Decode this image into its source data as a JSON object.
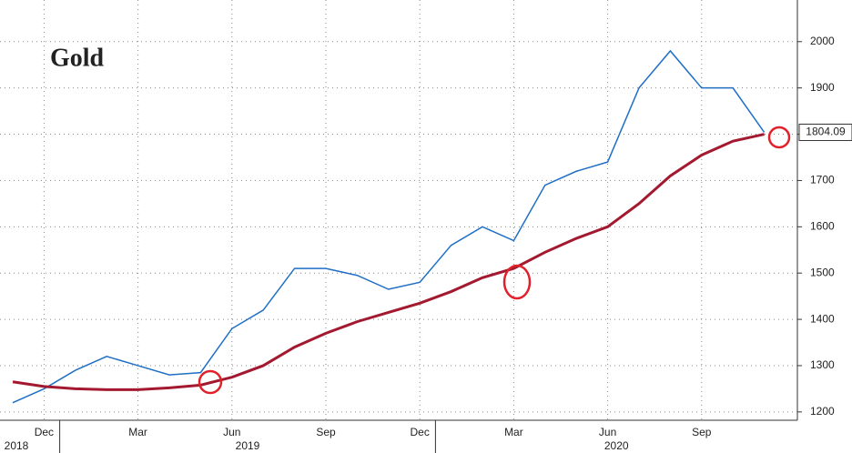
{
  "chart_data": {
    "type": "line",
    "title": "Gold",
    "x": [
      "2018-11",
      "2018-12",
      "2019-01",
      "2019-02",
      "2019-03",
      "2019-04",
      "2019-05",
      "2019-06",
      "2019-07",
      "2019-08",
      "2019-09",
      "2019-10",
      "2019-11",
      "2019-12",
      "2020-01",
      "2020-02",
      "2020-03",
      "2020-04",
      "2020-05",
      "2020-06",
      "2020-07",
      "2020-08",
      "2020-09",
      "2020-10",
      "2020-11"
    ],
    "series": [
      {
        "color": "#1f6fc5",
        "values": [
          1220,
          1250,
          1290,
          1320,
          1300,
          1280,
          1285,
          1380,
          1420,
          1510,
          1510,
          1495,
          1465,
          1480,
          1560,
          1600,
          1570,
          1690,
          1720,
          1740,
          1900,
          1980,
          1900,
          1900,
          1804.09
        ]
      },
      {
        "color": "#a3192f",
        "values": [
          1265,
          1255,
          1250,
          1248,
          1248,
          1252,
          1258,
          1275,
          1300,
          1340,
          1370,
          1395,
          1415,
          1435,
          1460,
          1490,
          1510,
          1545,
          1575,
          1600,
          1650,
          1710,
          1755,
          1785,
          1800
        ]
      }
    ],
    "xticks": [
      {
        "value": "2018-12",
        "label": "Dec"
      },
      {
        "value": "2019-03",
        "label": "Mar"
      },
      {
        "value": "2019-06",
        "label": "Jun"
      },
      {
        "value": "2019-09",
        "label": "Sep"
      },
      {
        "value": "2019-12",
        "label": "Dec"
      },
      {
        "value": "2020-03",
        "label": "Mar"
      },
      {
        "value": "2020-06",
        "label": "Jun"
      },
      {
        "value": "2020-09",
        "label": "Sep"
      }
    ],
    "year_labels": [
      {
        "value": "2018-11",
        "label": "2018"
      },
      {
        "value": "2019-01",
        "label": "2019"
      },
      {
        "value": "2020-01",
        "label": "2020"
      }
    ],
    "ylim": [
      1182,
      2090
    ],
    "yticks": [
      1200,
      1300,
      1400,
      1500,
      1600,
      1700,
      1800,
      1900,
      2000
    ],
    "grid": true
  }
}
